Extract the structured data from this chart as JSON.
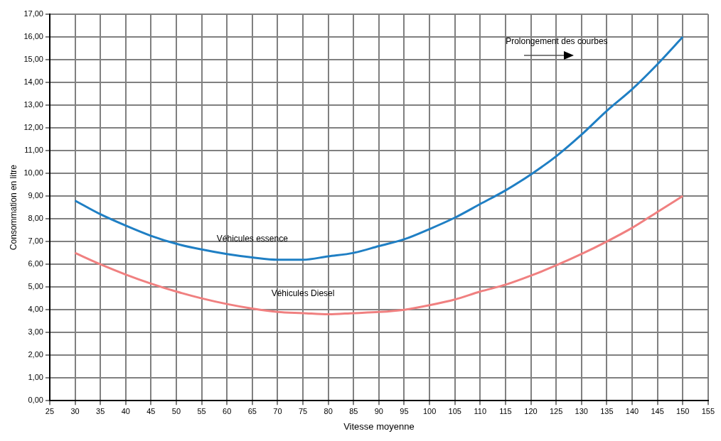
{
  "chart_data": {
    "type": "line",
    "xlabel": "Vitesse moyenne",
    "ylabel": "Consommation en litre",
    "annotations": [
      "Prolongement des courbes"
    ],
    "x": [
      30,
      35,
      40,
      45,
      50,
      55,
      60,
      65,
      70,
      75,
      80,
      85,
      90,
      95,
      100,
      105,
      110,
      115,
      120,
      125,
      130,
      135,
      140,
      145,
      150
    ],
    "series": [
      {
        "name": "Véhicules essence",
        "color": "#1f7fc4",
        "values": [
          8.8,
          8.2,
          7.7,
          7.25,
          6.9,
          6.65,
          6.45,
          6.3,
          6.2,
          6.2,
          6.35,
          6.5,
          6.8,
          7.1,
          7.55,
          8.05,
          8.65,
          9.25,
          9.95,
          10.75,
          11.7,
          12.75,
          13.7,
          14.8,
          16.0
        ]
      },
      {
        "name": "Véhicules Diesel",
        "color": "#f08080",
        "values": [
          6.5,
          6.0,
          5.55,
          5.15,
          4.8,
          4.5,
          4.25,
          4.05,
          3.9,
          3.85,
          3.8,
          3.85,
          3.9,
          4.0,
          4.2,
          4.45,
          4.8,
          5.1,
          5.5,
          5.95,
          6.45,
          7.0,
          7.6,
          8.3,
          9.0
        ]
      }
    ],
    "xlim": [
      25,
      155
    ],
    "xticks": [
      25,
      30,
      35,
      40,
      45,
      50,
      55,
      60,
      65,
      70,
      75,
      80,
      85,
      90,
      95,
      100,
      105,
      110,
      115,
      120,
      125,
      130,
      135,
      140,
      145,
      150,
      155
    ],
    "ylim": [
      0,
      17
    ],
    "yticks": [
      {
        "value": 0,
        "label": "0,00"
      },
      {
        "value": 1,
        "label": "1,00"
      },
      {
        "value": 2,
        "label": "2,00"
      },
      {
        "value": 3,
        "label": "3,00"
      },
      {
        "value": 4,
        "label": "4,00"
      },
      {
        "value": 5,
        "label": "5,00"
      },
      {
        "value": 6,
        "label": "6,00"
      },
      {
        "value": 7,
        "label": "7,00"
      },
      {
        "value": 8,
        "label": "8,00"
      },
      {
        "value": 9,
        "label": "9,00"
      },
      {
        "value": 10,
        "label": "10,00"
      },
      {
        "value": 11,
        "label": "11,00"
      },
      {
        "value": 12,
        "label": "12,00"
      },
      {
        "value": 13,
        "label": "13,00"
      },
      {
        "value": 14,
        "label": "14,00"
      },
      {
        "value": 15,
        "label": "15,00"
      },
      {
        "value": 16,
        "label": "16,00"
      },
      {
        "value": 17,
        "label": "17,00"
      }
    ],
    "grid": true,
    "legend": false,
    "marker": "none",
    "line_style": "solid"
  }
}
